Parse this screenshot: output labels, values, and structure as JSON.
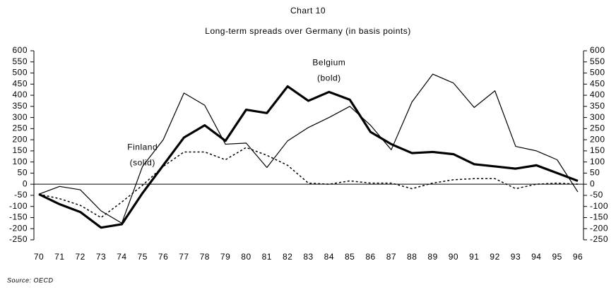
{
  "chart_data": {
    "type": "line",
    "title": "Chart 10",
    "subtitle": "Long-term spreads over Germany (in basis points)",
    "source": "Source: OECD",
    "annotations": [
      {
        "text": "Finland",
        "year": "75",
        "value": 165
      },
      {
        "text": "(solid)",
        "year": "75",
        "value": 95
      },
      {
        "text": "Belgium",
        "year": "84",
        "value": 545
      },
      {
        "text": "(bold)",
        "year": "84",
        "value": 475
      }
    ],
    "categories": [
      "70",
      "71",
      "72",
      "73",
      "74",
      "75",
      "76",
      "77",
      "78",
      "79",
      "80",
      "81",
      "82",
      "83",
      "84",
      "85",
      "86",
      "87",
      "88",
      "89",
      "90",
      "91",
      "92",
      "93",
      "94",
      "95",
      "96"
    ],
    "series": [
      {
        "line_style": "thin",
        "color": "#000000",
        "values": [
          -45,
          -10,
          -25,
          -120,
          -175,
          80,
          200,
          410,
          355,
          180,
          185,
          75,
          195,
          255,
          300,
          350,
          265,
          155,
          370,
          495,
          455,
          345,
          420,
          170,
          150,
          110,
          -35
        ]
      },
      {
        "line_style": "bold",
        "color": "#000000",
        "values": [
          -45,
          -90,
          -125,
          -195,
          -180,
          -40,
          85,
          210,
          265,
          195,
          335,
          320,
          440,
          375,
          415,
          380,
          235,
          180,
          140,
          145,
          135,
          90,
          80,
          70,
          85,
          50,
          15
        ]
      },
      {
        "line_style": "dotted",
        "color": "#000000",
        "values": [
          -45,
          -65,
          -95,
          -150,
          -80,
          -5,
          80,
          145,
          145,
          110,
          165,
          130,
          85,
          5,
          0,
          15,
          5,
          5,
          -20,
          5,
          20,
          25,
          25,
          -20,
          0,
          5,
          0
        ]
      }
    ],
    "ylim": [
      -250,
      600
    ],
    "yticks": [
      -250,
      -200,
      -150,
      -100,
      -50,
      0,
      50,
      100,
      150,
      200,
      250,
      300,
      350,
      400,
      450,
      500,
      550,
      600
    ],
    "y2lim": [
      -250,
      600
    ],
    "y2ticks": [
      -250,
      -200,
      -150,
      -100,
      -50,
      0,
      50,
      100,
      150,
      200,
      250,
      300,
      350,
      400,
      450,
      500,
      550,
      600
    ],
    "zero_line": true
  }
}
